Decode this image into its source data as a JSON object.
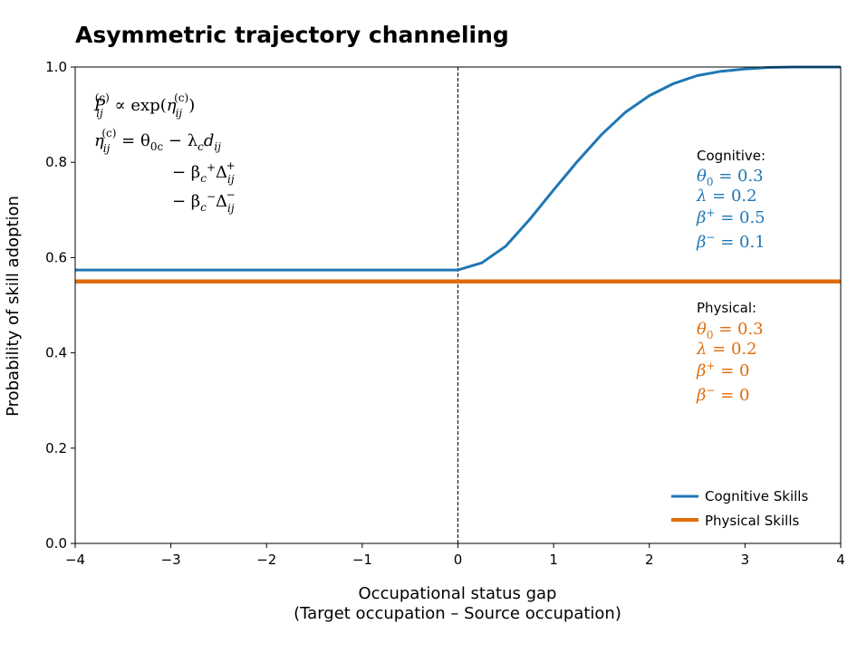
{
  "chart_data": {
    "type": "line",
    "title": "Asymmetric trajectory channeling",
    "xlabel_line1": "Occupational status gap",
    "xlabel_line2": "(Target occupation – Source occupation)",
    "ylabel": "Probability of skill adoption",
    "xlim": [
      -4,
      4
    ],
    "ylim": [
      0,
      1
    ],
    "xticks": [
      -4,
      -3,
      -2,
      -1,
      0,
      1,
      2,
      3,
      4
    ],
    "xtick_labels": [
      "−4",
      "−3",
      "−2",
      "−1",
      "0",
      "1",
      "2",
      "3",
      "4"
    ],
    "yticks": [
      0,
      0.2,
      0.4,
      0.6,
      0.8,
      1.0
    ],
    "ytick_labels": [
      "0.0",
      "0.2",
      "0.4",
      "0.6",
      "0.8",
      "1.0"
    ],
    "vline_x": 0,
    "grid": false,
    "legend_position": "bottom-right",
    "series": [
      {
        "name": "Cognitive Skills",
        "color": "#1f77b4",
        "x": [
          -4,
          -3,
          -2,
          -1,
          0,
          0.25,
          0.5,
          0.75,
          1.0,
          1.25,
          1.5,
          1.75,
          2.0,
          2.25,
          2.5,
          2.75,
          3.0,
          3.25,
          3.5,
          4.0
        ],
        "y": [
          0.574,
          0.574,
          0.574,
          0.574,
          0.574,
          0.589,
          0.624,
          0.68,
          0.742,
          0.802,
          0.858,
          0.905,
          0.94,
          0.965,
          0.982,
          0.991,
          0.996,
          0.999,
          1.0,
          1.0
        ]
      },
      {
        "name": "Physical Skills",
        "color": "#e06c0a",
        "x": [
          -4,
          4
        ],
        "y": [
          0.55,
          0.55
        ]
      }
    ],
    "annotations": {
      "formula": {
        "line1": [
          "P",
          "ij",
          "(c)",
          " ∝ exp(",
          "η",
          "ij",
          "(c)",
          ")"
        ],
        "line2": [
          "η",
          "ij",
          "(c)",
          " = θ",
          "0c",
          " − λ",
          "c",
          "d",
          "ij"
        ],
        "line3": [
          "− β",
          "c",
          "+",
          "Δ",
          "ij",
          "+"
        ],
        "line4": [
          "− β",
          "c",
          "−",
          "Δ",
          "ij",
          "−"
        ]
      },
      "cognitive": {
        "heading": "Cognitive:",
        "theta0": "θ0 = 0.3",
        "lambda": "λ = 0.2",
        "beta_plus": "β+ = 0.5",
        "beta_minus": "β− = 0.1",
        "theta_sym": "θ",
        "theta_sub": "0",
        "theta_val": " = 0.3",
        "lambda_sym": "λ",
        "lambda_val": " = 0.2",
        "bp_sym": "β",
        "bp_sup": "+",
        "bp_val": " = 0.5",
        "bm_sym": "β",
        "bm_sup": "−",
        "bm_val": " = 0.1"
      },
      "physical": {
        "heading": "Physical:",
        "theta0": "θ0 = 0.3",
        "lambda": "λ = 0.2",
        "beta_plus": "β+ = 0",
        "beta_minus": "β− = 0",
        "theta_sym": "θ",
        "theta_sub": "0",
        "theta_val": " = 0.3",
        "lambda_sym": "λ",
        "lambda_val": " = 0.2",
        "bp_sym": "β",
        "bp_sup": "+",
        "bp_val": " = 0",
        "bm_sym": "β",
        "bm_sup": "−",
        "bm_val": " = 0"
      }
    }
  }
}
